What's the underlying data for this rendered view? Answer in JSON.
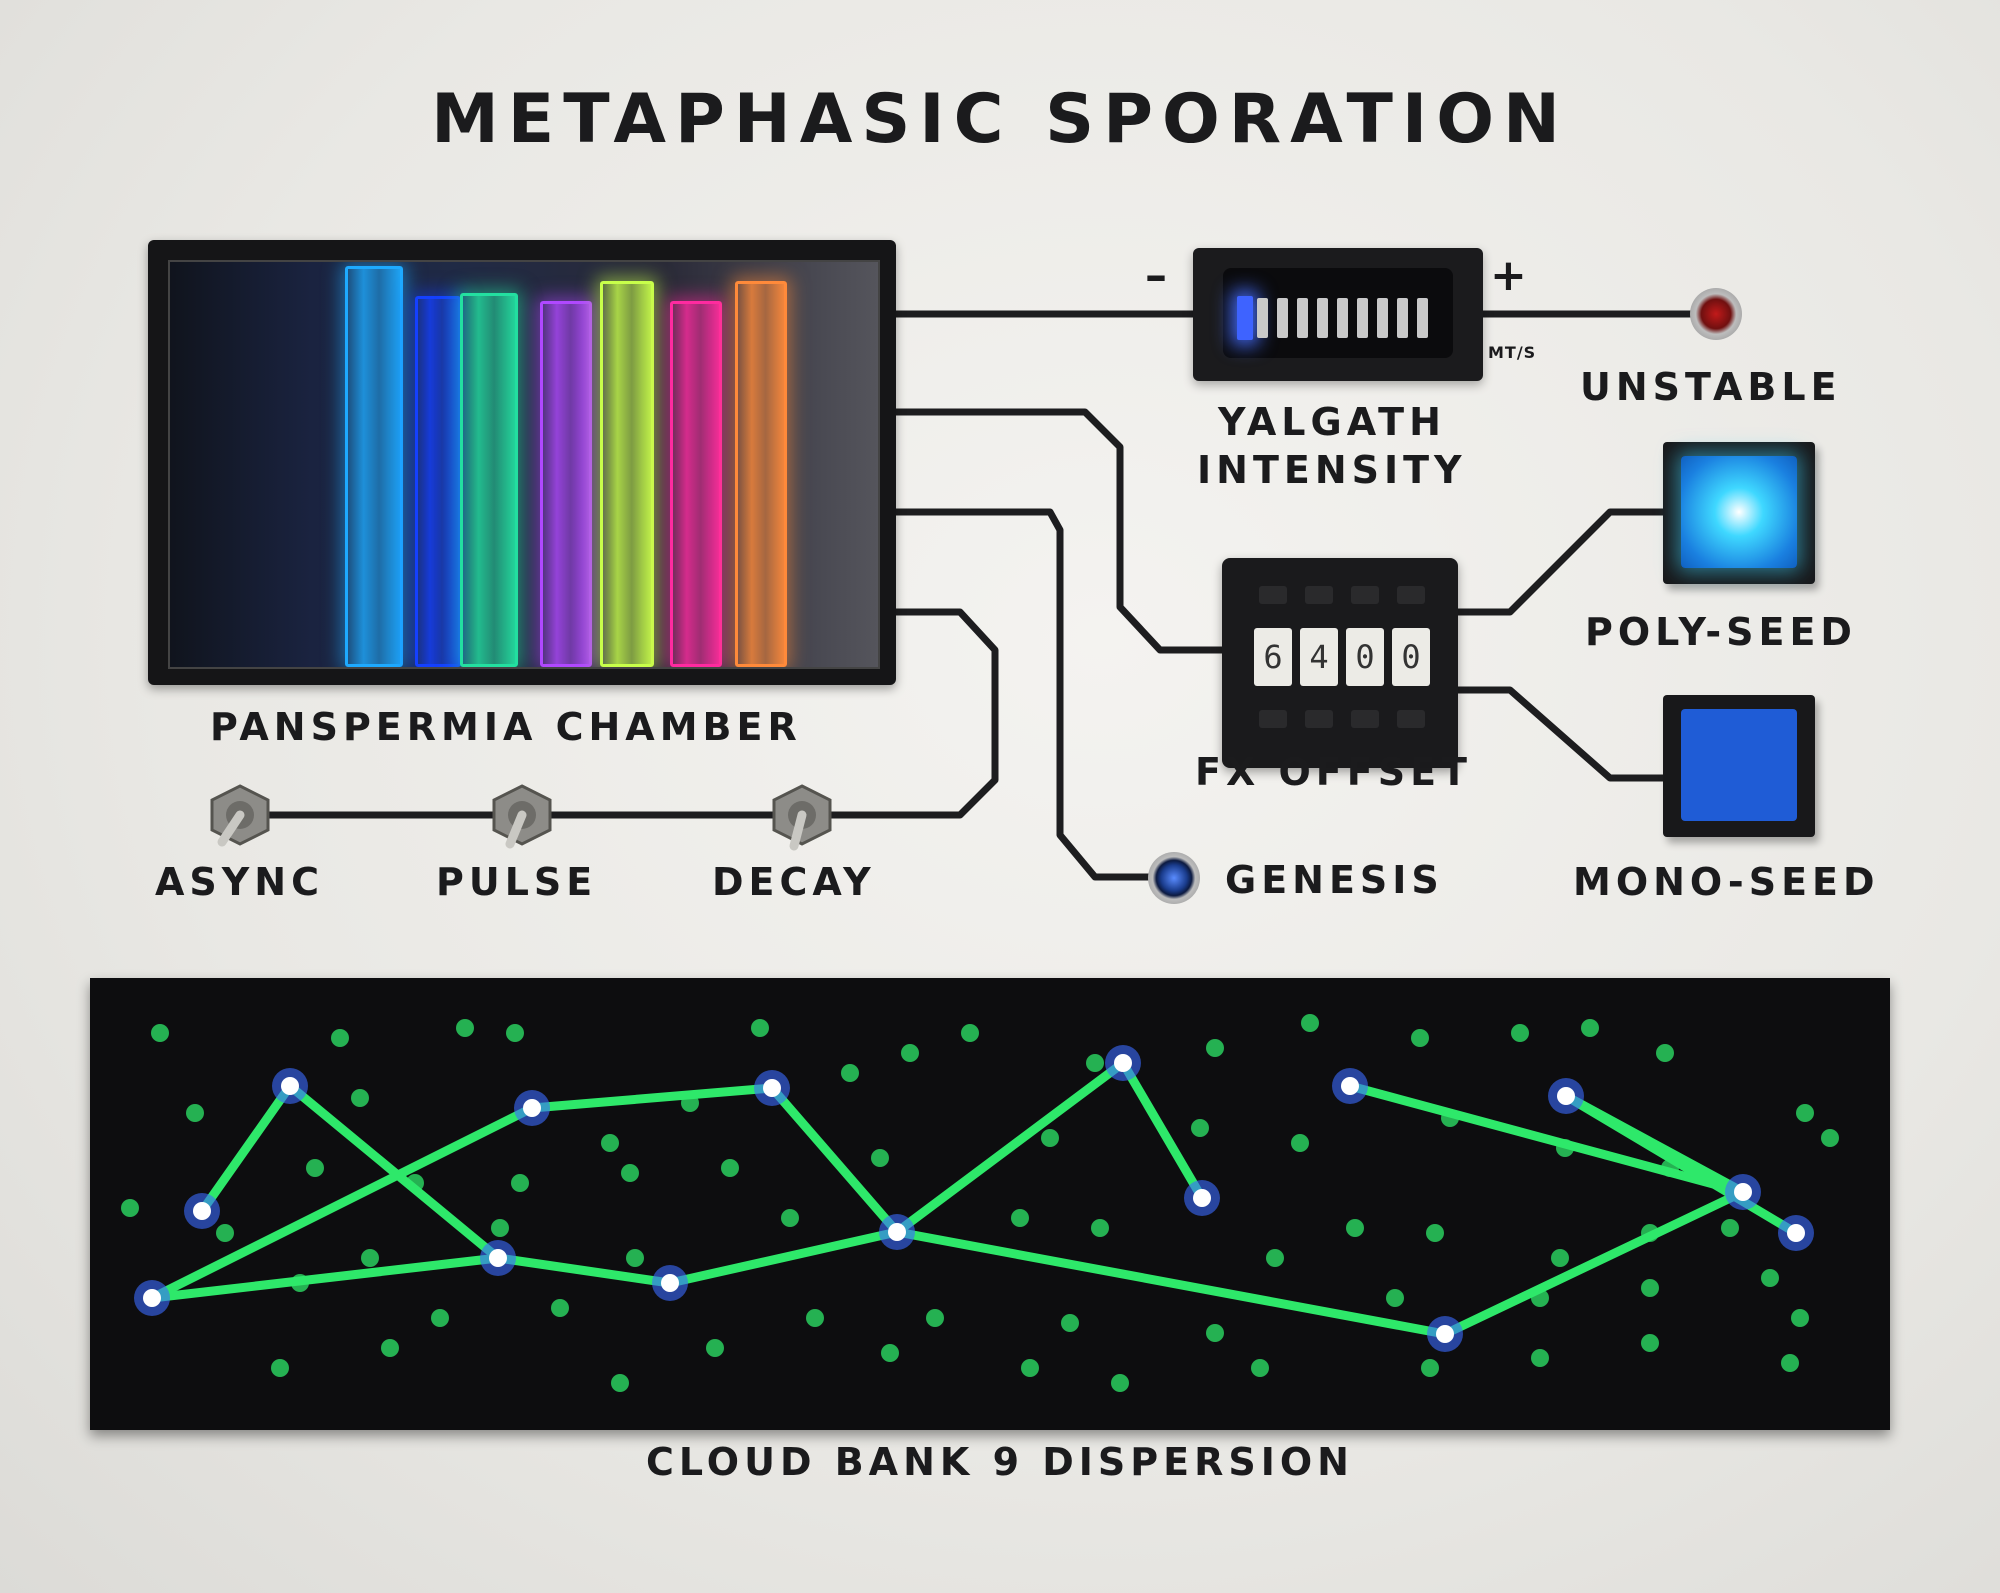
{
  "title": "METAPHASIC SPORATION",
  "chamber": {
    "label": "PANSPERMIA CHAMBER",
    "rods": [
      "#1eaaff",
      "#1440ff",
      "#23e0a0",
      "#b048ff",
      "#c8ff4a",
      "#ff2aa0",
      "#ff8a3a"
    ]
  },
  "meter": {
    "label_line1": "YALGATH",
    "label_line2": "INTENSITY",
    "minus": "–",
    "plus": "+",
    "unit": "MT/S",
    "segments_total": 10,
    "segments_lit": 1
  },
  "unstable": {
    "label": "UNSTABLE",
    "color": "#c21a1a"
  },
  "counter": {
    "label": "FX OFFSET",
    "digits": [
      "6",
      "4",
      "0",
      "0"
    ]
  },
  "poly_seed": {
    "label": "POLY-SEED",
    "color": "#3fd8ff"
  },
  "mono_seed": {
    "label": "MONO-SEED",
    "color": "#1f5cd6"
  },
  "genesis": {
    "label": "GENESIS",
    "color": "#1a3c8c"
  },
  "toggles": [
    {
      "label": "ASYNC"
    },
    {
      "label": "PULSE"
    },
    {
      "label": "DECAY"
    }
  ],
  "dispersion": {
    "label": "CLOUD BANK 9 DISPERSION",
    "star_color": "#3a6bff",
    "line_color": "#2ee86a"
  }
}
